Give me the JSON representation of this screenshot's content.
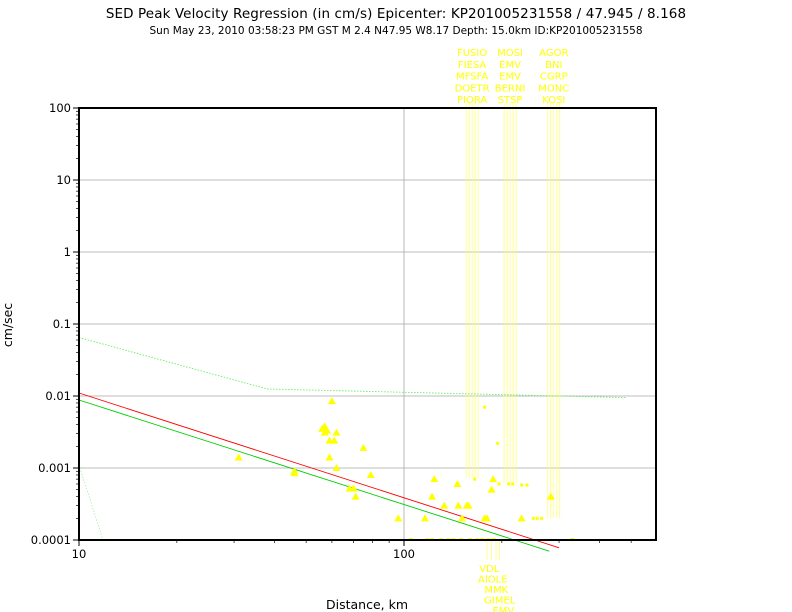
{
  "chart_data": {
    "type": "scatter",
    "title": "SED Peak Velocity Regression (in cm/s) Epicenter: KP201005231558 / 47.945 / 8.168",
    "subtitle": "Sun May 23, 2010 03:58:23 PM GST   M 2.4   N47.95 W8.17   Depth: 15.0km   ID:KP201005231558",
    "xlabel": "Distance, km",
    "ylabel": "cm/sec",
    "x_scale": "log",
    "y_scale": "log",
    "xlim": [
      10,
      500
    ],
    "ylim": [
      0.0001,
      100
    ],
    "x_ticks": [
      10,
      100
    ],
    "x_tick_labels": [
      "10",
      "100"
    ],
    "y_ticks": [
      0.0001,
      0.001,
      0.01,
      0.1,
      1,
      10,
      100
    ],
    "y_tick_labels": [
      "0.0001",
      "0.001",
      "0.01",
      "0.1",
      "1",
      "10",
      "100"
    ],
    "grid": true,
    "point_color": "#ffff00",
    "points": [
      {
        "x": 31,
        "y": 0.0014
      },
      {
        "x": 46,
        "y": 0.0009
      },
      {
        "x": 46,
        "y": 0.00085
      },
      {
        "x": 56,
        "y": 0.0035
      },
      {
        "x": 57,
        "y": 0.0038
      },
      {
        "x": 57,
        "y": 0.0031
      },
      {
        "x": 58,
        "y": 0.0033
      },
      {
        "x": 59,
        "y": 0.0024
      },
      {
        "x": 59,
        "y": 0.0014
      },
      {
        "x": 60,
        "y": 0.0085
      },
      {
        "x": 61,
        "y": 0.0024
      },
      {
        "x": 62,
        "y": 0.0031
      },
      {
        "x": 62,
        "y": 0.001
      },
      {
        "x": 68,
        "y": 0.00052
      },
      {
        "x": 70,
        "y": 0.00052
      },
      {
        "x": 71,
        "y": 0.0004
      },
      {
        "x": 75,
        "y": 0.0019
      },
      {
        "x": 79,
        "y": 0.0008
      },
      {
        "x": 96,
        "y": 0.0002
      },
      {
        "x": 116,
        "y": 0.0002
      },
      {
        "x": 122,
        "y": 0.0004
      },
      {
        "x": 124,
        "y": 0.0007
      },
      {
        "x": 133,
        "y": 0.0003
      },
      {
        "x": 146,
        "y": 0.0006
      },
      {
        "x": 147,
        "y": 0.0003
      },
      {
        "x": 151,
        "y": 0.0002
      },
      {
        "x": 156,
        "y": 0.0003
      },
      {
        "x": 158,
        "y": 0.0003
      },
      {
        "x": 177,
        "y": 0.0002
      },
      {
        "x": 180,
        "y": 0.0002
      },
      {
        "x": 186,
        "y": 0.0005
      },
      {
        "x": 188,
        "y": 0.0007
      },
      {
        "x": 230,
        "y": 0.0002
      },
      {
        "x": 283,
        "y": 0.0004
      }
    ],
    "small_points": [
      {
        "x": 177,
        "y": 0.007
      },
      {
        "x": 194,
        "y": 0.0022
      },
      {
        "x": 196,
        "y": 0.0006
      },
      {
        "x": 165,
        "y": 0.0007
      },
      {
        "x": 210,
        "y": 0.0006
      },
      {
        "x": 216,
        "y": 0.0006
      },
      {
        "x": 230,
        "y": 0.00058
      },
      {
        "x": 239,
        "y": 0.00058
      },
      {
        "x": 250,
        "y": 0.0002
      },
      {
        "x": 257,
        "y": 0.0002
      },
      {
        "x": 265,
        "y": 0.0002
      }
    ],
    "lines": [
      {
        "color": "#ff0000",
        "x": [
          10,
          300
        ],
        "y": [
          0.011,
          7.8e-05
        ]
      },
      {
        "color": "#00cc00",
        "x": [
          10,
          280
        ],
        "y": [
          0.0088,
          7e-05
        ]
      },
      {
        "color": "#66ee66",
        "style": "dotted",
        "x": [
          10,
          38,
          480
        ],
        "y": [
          0.065,
          0.0125,
          0.0095
        ]
      }
    ],
    "station_groups_top": [
      {
        "x": 162,
        "labels": [
          "FUSIO",
          "FIESA",
          "MFSFA",
          "DOETR",
          "PIORA"
        ]
      },
      {
        "x": 212,
        "labels": [
          "MOSI",
          "EMV",
          "EMV",
          "BERNI",
          "STSP"
        ]
      },
      {
        "x": 289,
        "labels": [
          "AGOR",
          "BNI",
          "CGRP",
          "MONC",
          "KOSI"
        ]
      }
    ],
    "station_labels_bottom": [
      "VDL",
      "AIOLE",
      "MMK",
      "GIMEL",
      "EMV"
    ]
  }
}
